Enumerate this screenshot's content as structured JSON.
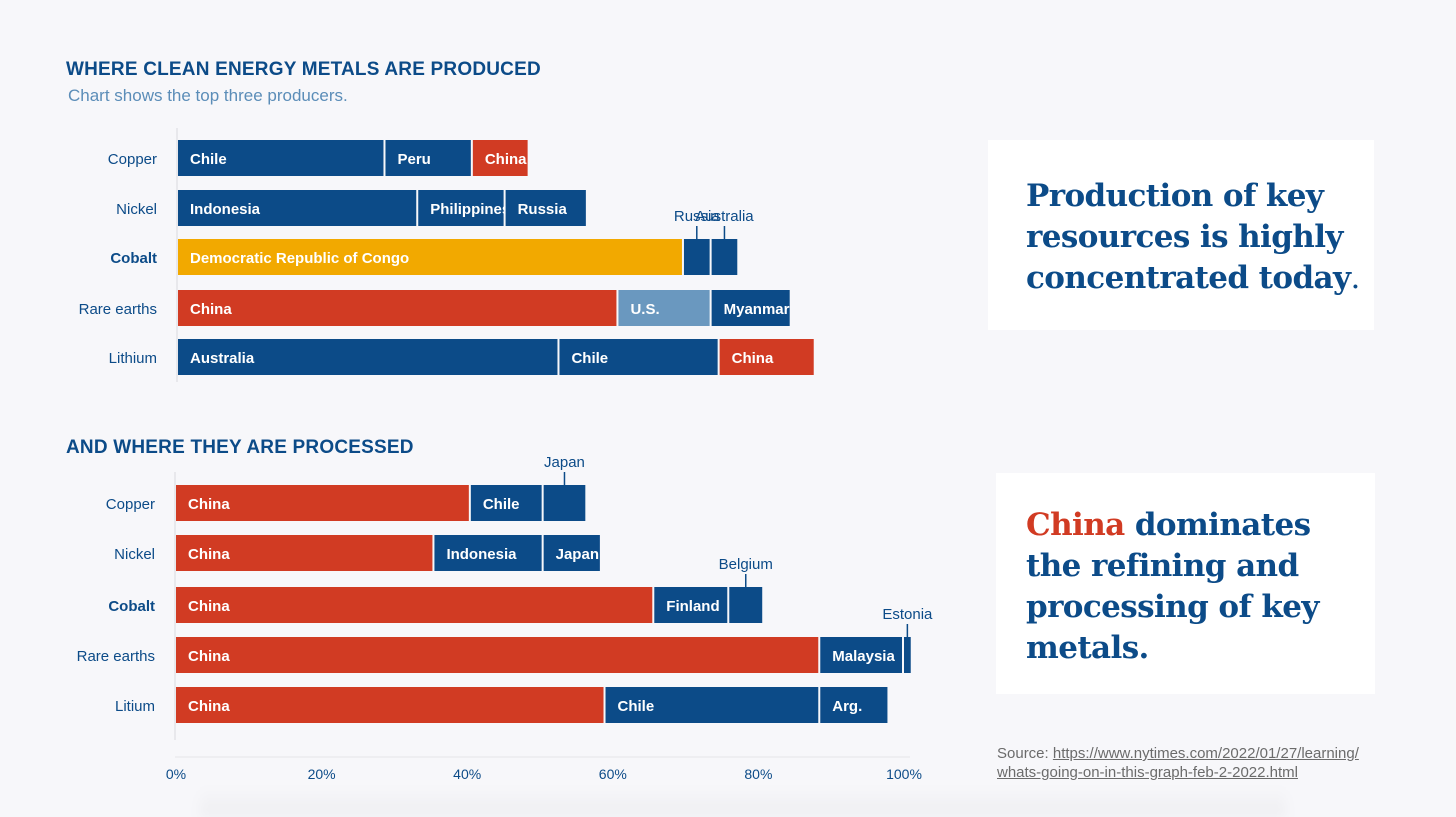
{
  "header": {
    "production_title": "WHERE CLEAN ENERGY METALS ARE PRODUCED",
    "production_subtitle": "Chart shows the top three producers.",
    "processing_title": "AND WHERE THEY ARE PROCESSED"
  },
  "callouts": {
    "production": {
      "text": "Production of key resources is highly concentrated today",
      "period": "."
    },
    "processing": {
      "highlight": "China",
      "text": " dominates the refining and processing of key metals."
    }
  },
  "source": {
    "label": "Source:",
    "url": "https://www.nytimes.com/2022/01/27/learning/whats-going-on-in-this-graph-feb-2-2022.html",
    "line1": "https://www.nytimes.com/2022/01/27/learning/",
    "line2": "whats-going-on-in-this-graph-feb-2-2022.html"
  },
  "colors": {
    "blue": "#0c4b88",
    "red": "#d13b23",
    "yellow": "#f2a900",
    "light_blue": "#6a98bf",
    "axis_text": "#0c4b88"
  },
  "chart_data": [
    {
      "type": "bar",
      "stacked": true,
      "orientation": "horizontal",
      "title": "WHERE CLEAN ENERGY METALS ARE PRODUCED",
      "subtitle": "Chart shows the top three producers.",
      "xlim": [
        0,
        100
      ],
      "categories": [
        "Copper",
        "Nickel",
        "Cobalt",
        "Rare earths",
        "Lithium"
      ],
      "emphasized_category": "Cobalt",
      "rows": [
        {
          "category": "Copper",
          "segments": [
            {
              "label": "Chile",
              "value": 28.5,
              "color": "blue",
              "label_position": "inside"
            },
            {
              "label": "Peru",
              "value": 12,
              "color": "blue",
              "label_position": "inside"
            },
            {
              "label": "China",
              "value": 7.8,
              "color": "red",
              "label_position": "inside"
            }
          ]
        },
        {
          "category": "Nickel",
          "segments": [
            {
              "label": "Indonesia",
              "value": 33,
              "color": "blue",
              "label_position": "inside"
            },
            {
              "label": "Philippines",
              "value": 12,
              "color": "blue",
              "label_position": "inside"
            },
            {
              "label": "Russia",
              "value": 11.3,
              "color": "blue",
              "label_position": "inside"
            }
          ]
        },
        {
          "category": "Cobalt",
          "segments": [
            {
              "label": "Democratic Republic of Congo",
              "value": 69.5,
              "color": "yellow",
              "label_position": "inside"
            },
            {
              "label": "Russia",
              "value": 3.8,
              "color": "blue",
              "label_position": "above"
            },
            {
              "label": "Australia",
              "value": 3.8,
              "color": "blue",
              "label_position": "above"
            }
          ]
        },
        {
          "category": "Rare earths",
          "segments": [
            {
              "label": "China",
              "value": 60.5,
              "color": "red",
              "label_position": "inside"
            },
            {
              "label": "U.S.",
              "value": 12.8,
              "color": "light_blue",
              "label_position": "inside"
            },
            {
              "label": "Myanmar",
              "value": 11,
              "color": "blue",
              "label_position": "inside"
            }
          ]
        },
        {
          "category": "Lithium",
          "segments": [
            {
              "label": "Australia",
              "value": 52.4,
              "color": "blue",
              "label_position": "inside"
            },
            {
              "label": "Chile",
              "value": 22,
              "color": "blue",
              "label_position": "inside"
            },
            {
              "label": "China",
              "value": 13.2,
              "color": "red",
              "label_position": "inside"
            }
          ]
        }
      ]
    },
    {
      "type": "bar",
      "stacked": true,
      "orientation": "horizontal",
      "title": "AND WHERE THEY ARE PROCESSED",
      "xlim": [
        0,
        100
      ],
      "x_ticks": [
        "0%",
        "20%",
        "40%",
        "60%",
        "80%",
        "100%"
      ],
      "categories": [
        "Copper",
        "Nickel",
        "Cobalt",
        "Rare earths",
        "Litium"
      ],
      "emphasized_category": "Cobalt",
      "rows": [
        {
          "category": "Copper",
          "segments": [
            {
              "label": "China",
              "value": 40.5,
              "color": "red",
              "label_position": "inside"
            },
            {
              "label": "Chile",
              "value": 10,
              "color": "blue",
              "label_position": "inside"
            },
            {
              "label": "Japan",
              "value": 6,
              "color": "blue",
              "label_position": "above"
            }
          ]
        },
        {
          "category": "Nickel",
          "segments": [
            {
              "label": "China",
              "value": 35.5,
              "color": "red",
              "label_position": "inside"
            },
            {
              "label": "Indonesia",
              "value": 15,
              "color": "blue",
              "label_position": "inside"
            },
            {
              "label": "Japan",
              "value": 8,
              "color": "blue",
              "label_position": "inside"
            }
          ]
        },
        {
          "category": "Cobalt",
          "segments": [
            {
              "label": "China",
              "value": 65.7,
              "color": "red",
              "label_position": "inside"
            },
            {
              "label": "Finland",
              "value": 10.3,
              "color": "blue",
              "label_position": "inside"
            },
            {
              "label": "Belgium",
              "value": 4.8,
              "color": "blue",
              "label_position": "above"
            }
          ]
        },
        {
          "category": "Rare earths",
          "segments": [
            {
              "label": "China",
              "value": 88.5,
              "color": "red",
              "label_position": "inside"
            },
            {
              "label": "Malaysia",
              "value": 11.5,
              "color": "blue",
              "label_position": "inside"
            },
            {
              "label": "Estonia",
              "value": 1.2,
              "color": "blue",
              "label_position": "above"
            }
          ]
        },
        {
          "category": "Litium",
          "segments": [
            {
              "label": "China",
              "value": 59,
              "color": "red",
              "label_position": "inside"
            },
            {
              "label": "Chile",
              "value": 29.5,
              "color": "blue",
              "label_position": "inside"
            },
            {
              "label": "Arg.",
              "value": 9.5,
              "color": "blue",
              "label_position": "inside"
            }
          ]
        }
      ]
    }
  ]
}
